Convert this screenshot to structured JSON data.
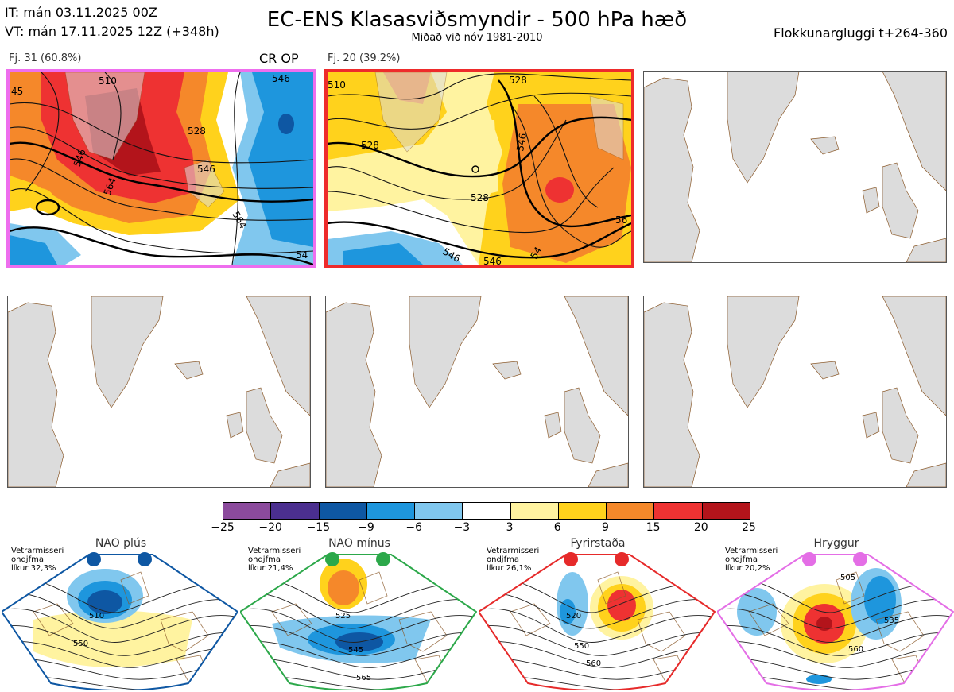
{
  "header": {
    "it_line": "IT: mán 03.11.2025 00Z",
    "vt_line": "VT: mán 17.11.2025 12Z  (+348h)",
    "title": "EC-ENS Klasasviðsmyndir - 500 hPa hæð",
    "subtitle": "Miðað við nóv 1981-2010",
    "window": "Flokkunargluggi t+264-360"
  },
  "panels": [
    {
      "label": "Fj. 31 (60.8%)",
      "tag": "CR OP",
      "border_color": "#ee6eee",
      "contour_labels": [
        "510",
        "528",
        "546",
        "546",
        "564",
        "564",
        "45",
        "546",
        "54"
      ]
    },
    {
      "label": "Fj. 20 (39.2%)",
      "tag": "",
      "border_color": "#ee2b2b",
      "contour_labels": [
        "510",
        "528",
        "528",
        "546",
        "528",
        "546",
        "546",
        "56",
        "54"
      ]
    },
    {
      "label": "",
      "tag": "",
      "border_color": "#555555",
      "contour_labels": []
    },
    {
      "label": "",
      "tag": "",
      "border_color": "#555555",
      "contour_labels": []
    },
    {
      "label": "",
      "tag": "",
      "border_color": "#555555",
      "contour_labels": []
    },
    {
      "label": "",
      "tag": "",
      "border_color": "#555555",
      "contour_labels": []
    }
  ],
  "colorbar": {
    "colors": [
      "#8b4a9c",
      "#4b2f8f",
      "#0e57a3",
      "#1e96dd",
      "#80c7ee",
      "#ffffff",
      "#fff3a0",
      "#ffd21c",
      "#f5882a",
      "#ee3232",
      "#b3141b"
    ],
    "ticks": [
      "−25",
      "−20",
      "−15",
      "−9",
      "−6",
      "−3",
      "3",
      "6",
      "9",
      "15",
      "20",
      "25"
    ]
  },
  "regimes": [
    {
      "name": "NAO plús",
      "note": [
        "Vetrarmisseri",
        "ondjfma",
        "líkur 32,3%"
      ],
      "color": "#0e57a3",
      "contour_labels": [
        "510",
        "550"
      ]
    },
    {
      "name": "NAO mínus",
      "note": [
        "Vetrarmisseri",
        "ondjfma",
        "líkur 21,4%"
      ],
      "color": "#2ca84a",
      "contour_labels": [
        "525",
        "545",
        "565"
      ]
    },
    {
      "name": "Fyrirstaða",
      "note": [
        "Vetrarmisseri",
        "ondjfma",
        "líkur 26,1%"
      ],
      "color": "#e62a2a",
      "contour_labels": [
        "520",
        "550",
        "560"
      ]
    },
    {
      "name": "Hryggur",
      "note": [
        "Vetrarmisseri",
        "ondjfma",
        "líkur 20,2%"
      ],
      "color": "#e46ee6",
      "contour_labels": [
        "505",
        "535",
        "560"
      ]
    }
  ]
}
